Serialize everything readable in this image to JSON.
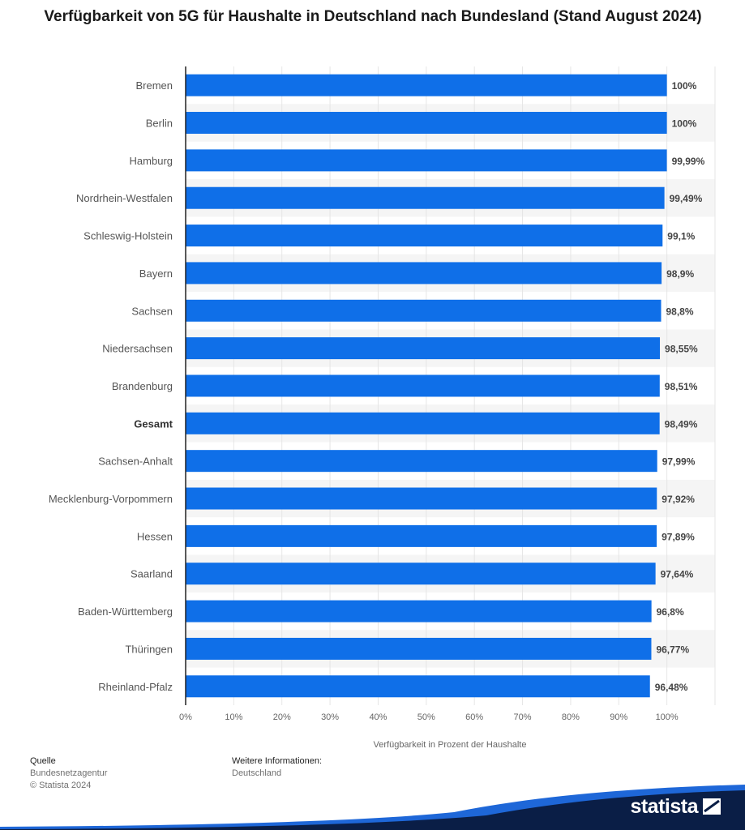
{
  "title": "Verfügbarkeit von 5G für Haushalte in Deutschland nach Bundesland (Stand August 2024)",
  "chart_data": {
    "type": "bar",
    "orientation": "horizontal",
    "categories": [
      "Bremen",
      "Berlin",
      "Hamburg",
      "Nordrhein-Westfalen",
      "Schleswig-Holstein",
      "Bayern",
      "Sachsen",
      "Niedersachsen",
      "Brandenburg",
      "Gesamt",
      "Sachsen-Anhalt",
      "Mecklenburg-Vorpommern",
      "Hessen",
      "Saarland",
      "Baden-Württemberg",
      "Thüringen",
      "Rheinland-Pfalz"
    ],
    "highlighted_category": "Gesamt",
    "values": [
      100,
      100,
      99.99,
      99.49,
      99.1,
      98.9,
      98.8,
      98.55,
      98.51,
      98.49,
      97.99,
      97.92,
      97.89,
      97.64,
      96.8,
      96.77,
      96.48
    ],
    "value_labels": [
      "100%",
      "100%",
      "99,99%",
      "99,49%",
      "99,1%",
      "98,9%",
      "98,8%",
      "98,55%",
      "98,51%",
      "98,49%",
      "97,99%",
      "97,92%",
      "97,89%",
      "97,64%",
      "96,8%",
      "96,77%",
      "96,48%"
    ],
    "x_ticks": [
      "0%",
      "10%",
      "20%",
      "30%",
      "40%",
      "50%",
      "60%",
      "70%",
      "80%",
      "90%",
      "100%"
    ],
    "xlabel": "Verfügbarkeit in Prozent der Haushalte",
    "xlim": [
      0,
      110
    ],
    "bar_color": "#0f6fe8",
    "stripe_color": "#f5f5f5",
    "grid": true
  },
  "footer": {
    "source_heading": "Quelle",
    "source_text": "Bundesnetzagentur",
    "copyright": "© Statista 2024",
    "info_heading": "Weitere Informationen:",
    "info_text": "Deutschland"
  },
  "brand": {
    "name": "statista",
    "color": "#0a1e46",
    "accent": "#1e67d8"
  }
}
